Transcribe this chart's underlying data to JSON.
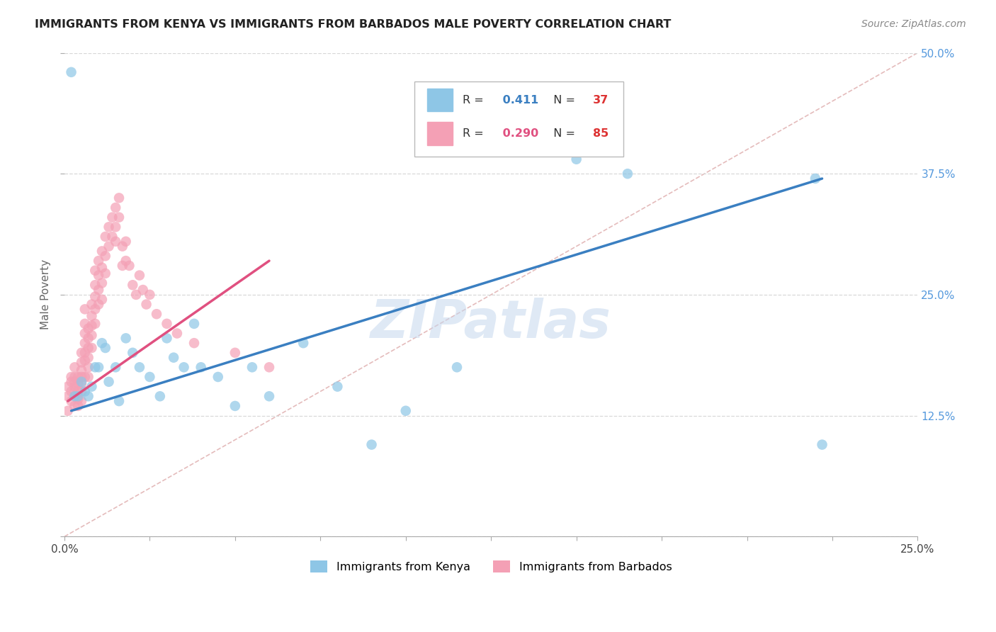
{
  "title": "IMMIGRANTS FROM KENYA VS IMMIGRANTS FROM BARBADOS MALE POVERTY CORRELATION CHART",
  "source": "Source: ZipAtlas.com",
  "ylabel": "Male Poverty",
  "xlim": [
    0.0,
    0.25
  ],
  "ylim": [
    0.0,
    0.5
  ],
  "xticks": [
    0.0,
    0.025,
    0.05,
    0.075,
    0.1,
    0.125,
    0.15,
    0.175,
    0.2,
    0.225,
    0.25
  ],
  "yticks": [
    0.0,
    0.125,
    0.25,
    0.375,
    0.5
  ],
  "xtick_labels_show": [
    "0.0%",
    "25.0%"
  ],
  "ytick_labels": [
    "",
    "12.5%",
    "25.0%",
    "37.5%",
    "50.0%"
  ],
  "kenya_R": 0.411,
  "kenya_N": 37,
  "barbados_R": 0.29,
  "barbados_N": 85,
  "kenya_color": "#8ec6e6",
  "barbados_color": "#f4a0b5",
  "kenya_line_color": "#3a7fc1",
  "barbados_line_color": "#e05080",
  "diagonal_color": "#e0b0b0",
  "background_color": "#ffffff",
  "grid_color": "#d8d8d8",
  "watermark": "ZIPatlas",
  "kenya_scatter_x": [
    0.002,
    0.003,
    0.004,
    0.005,
    0.006,
    0.007,
    0.008,
    0.009,
    0.01,
    0.011,
    0.012,
    0.013,
    0.015,
    0.016,
    0.018,
    0.02,
    0.022,
    0.025,
    0.028,
    0.03,
    0.032,
    0.035,
    0.038,
    0.04,
    0.045,
    0.05,
    0.055,
    0.06,
    0.07,
    0.08,
    0.09,
    0.1,
    0.115,
    0.15,
    0.165,
    0.22,
    0.222
  ],
  "kenya_scatter_y": [
    0.48,
    0.145,
    0.145,
    0.16,
    0.15,
    0.145,
    0.155,
    0.175,
    0.175,
    0.2,
    0.195,
    0.16,
    0.175,
    0.14,
    0.205,
    0.19,
    0.175,
    0.165,
    0.145,
    0.205,
    0.185,
    0.175,
    0.22,
    0.175,
    0.165,
    0.135,
    0.175,
    0.145,
    0.2,
    0.155,
    0.095,
    0.13,
    0.175,
    0.39,
    0.375,
    0.37,
    0.095
  ],
  "barbados_scatter_x": [
    0.001,
    0.001,
    0.001,
    0.002,
    0.002,
    0.002,
    0.002,
    0.003,
    0.003,
    0.003,
    0.003,
    0.003,
    0.003,
    0.004,
    0.004,
    0.004,
    0.004,
    0.004,
    0.005,
    0.005,
    0.005,
    0.005,
    0.005,
    0.005,
    0.005,
    0.006,
    0.006,
    0.006,
    0.006,
    0.006,
    0.006,
    0.006,
    0.007,
    0.007,
    0.007,
    0.007,
    0.007,
    0.007,
    0.008,
    0.008,
    0.008,
    0.008,
    0.008,
    0.009,
    0.009,
    0.009,
    0.009,
    0.009,
    0.01,
    0.01,
    0.01,
    0.01,
    0.011,
    0.011,
    0.011,
    0.011,
    0.012,
    0.012,
    0.012,
    0.013,
    0.013,
    0.014,
    0.014,
    0.015,
    0.015,
    0.015,
    0.016,
    0.016,
    0.017,
    0.017,
    0.018,
    0.018,
    0.019,
    0.02,
    0.021,
    0.022,
    0.023,
    0.024,
    0.025,
    0.027,
    0.03,
    0.033,
    0.038,
    0.05,
    0.06
  ],
  "barbados_scatter_y": [
    0.155,
    0.145,
    0.13,
    0.165,
    0.16,
    0.15,
    0.14,
    0.175,
    0.165,
    0.16,
    0.155,
    0.15,
    0.135,
    0.165,
    0.158,
    0.15,
    0.142,
    0.135,
    0.19,
    0.18,
    0.172,
    0.165,
    0.158,
    0.15,
    0.14,
    0.235,
    0.22,
    0.21,
    0.2,
    0.19,
    0.182,
    0.165,
    0.215,
    0.205,
    0.195,
    0.185,
    0.175,
    0.165,
    0.24,
    0.228,
    0.218,
    0.208,
    0.195,
    0.275,
    0.26,
    0.248,
    0.235,
    0.22,
    0.285,
    0.27,
    0.255,
    0.24,
    0.295,
    0.278,
    0.262,
    0.245,
    0.31,
    0.29,
    0.272,
    0.32,
    0.3,
    0.33,
    0.31,
    0.34,
    0.32,
    0.305,
    0.35,
    0.33,
    0.3,
    0.28,
    0.305,
    0.285,
    0.28,
    0.26,
    0.25,
    0.27,
    0.255,
    0.24,
    0.25,
    0.23,
    0.22,
    0.21,
    0.2,
    0.19,
    0.175
  ],
  "kenya_line_x": [
    0.002,
    0.222
  ],
  "kenya_line_y": [
    0.13,
    0.37
  ],
  "barbados_line_x": [
    0.001,
    0.06
  ],
  "barbados_line_y": [
    0.14,
    0.285
  ]
}
